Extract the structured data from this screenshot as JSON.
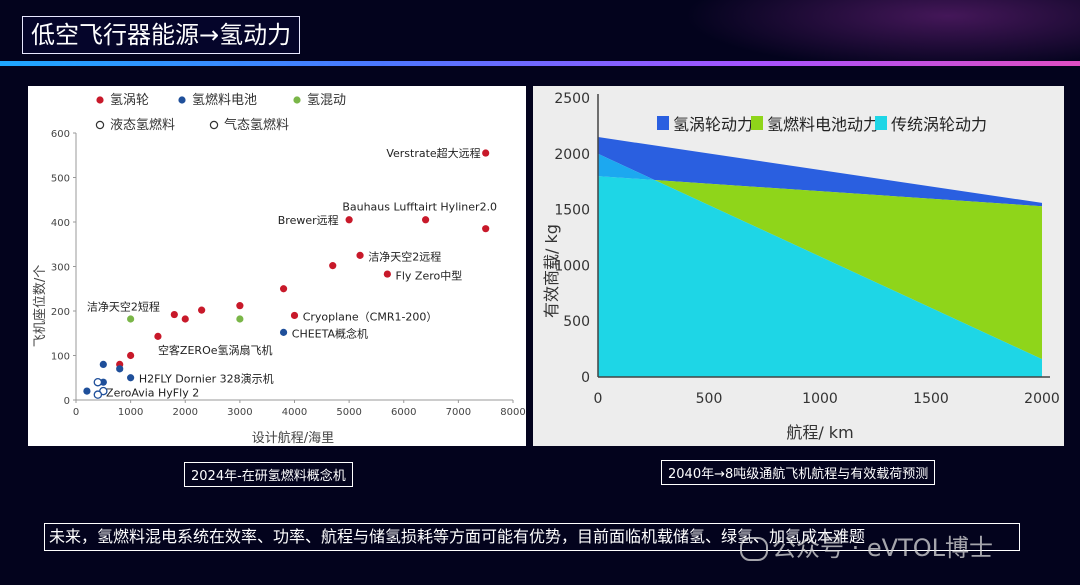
{
  "slide": {
    "title": "低空飞行器能源→氢动力",
    "left_caption": "2024年-在研氢燃料概念机",
    "right_caption": "2040年→8吨级通航飞机航程与有效载荷预测",
    "note": "未来，氢燃料混电系统在效率、功率、航程与储氢损耗等方面可能有优势，目前面临机载储氢、绿氢、加氢成本难题",
    "watermark": "公众号 · eVTOL博士"
  },
  "colors": {
    "turbine_red": "#c8192a",
    "fuelcell_blue": "#1f4f9a",
    "hybrid_green": "#7ab648",
    "area_blue": "#2a5fe0",
    "area_green": "#8fd51a",
    "area_cyan": "#1ed6e6"
  },
  "chart_data": [
    {
      "type": "scatter",
      "xlabel": "设计航程/海里",
      "ylabel": "飞机座位数/个",
      "xlim": [
        0,
        8000
      ],
      "ylim": [
        0,
        600
      ],
      "xticks": [
        0,
        1000,
        2000,
        3000,
        4000,
        5000,
        6000,
        7000,
        8000
      ],
      "yticks": [
        0,
        100,
        200,
        300,
        400,
        500,
        600
      ],
      "legend": [
        {
          "label": "氢涡轮",
          "marker": "filled",
          "color": "#c8192a"
        },
        {
          "label": "氢燃料电池",
          "marker": "filled",
          "color": "#1f4f9a"
        },
        {
          "label": "氢混动",
          "marker": "filled",
          "color": "#7ab648"
        },
        {
          "label": "液态氢燃料",
          "marker": "open",
          "color": "#1f4f9a"
        },
        {
          "label": "气态氢燃料",
          "marker": "open",
          "color": "#1f4f9a"
        }
      ],
      "series": [
        {
          "name": "氢涡轮",
          "marker": "filled",
          "color": "#c8192a",
          "points": [
            [
              7500,
              555
            ],
            [
              7500,
              385
            ],
            [
              6400,
              405
            ],
            [
              5000,
              405
            ],
            [
              5200,
              325
            ],
            [
              4700,
              302
            ],
            [
              5700,
              283
            ],
            [
              3800,
              250
            ],
            [
              3000,
              212
            ],
            [
              4000,
              190
            ],
            [
              1800,
              192
            ],
            [
              2000,
              182
            ],
            [
              2300,
              202
            ],
            [
              1500,
              143
            ],
            [
              1000,
              100
            ],
            [
              800,
              80
            ]
          ]
        },
        {
          "name": "氢燃料电池",
          "marker": "filled",
          "color": "#1f4f9a",
          "points": [
            [
              3800,
              152
            ],
            [
              500,
              80
            ],
            [
              800,
              70
            ],
            [
              1000,
              50
            ],
            [
              500,
              40
            ],
            [
              200,
              20
            ]
          ]
        },
        {
          "name": "氢混动",
          "marker": "filled",
          "color": "#7ab648",
          "points": [
            [
              1000,
              182
            ],
            [
              3000,
              182
            ]
          ]
        },
        {
          "name": "氢燃料电池（气态/液态）",
          "marker": "open",
          "color": "#1f4f9a",
          "points": [
            [
              400,
              40
            ],
            [
              500,
              20
            ],
            [
              400,
              12
            ]
          ]
        }
      ],
      "annotations": [
        {
          "text": "Verstrate超大远程",
          "x": 7500,
          "y": 555,
          "anchor": "end"
        },
        {
          "text": "Bauhaus Lufftairt Hyliner2.0",
          "x": 7800,
          "y": 435,
          "anchor": "end"
        },
        {
          "text": "Brewer远程",
          "x": 4900,
          "y": 405,
          "anchor": "end"
        },
        {
          "text": "洁净天空2远程",
          "x": 5350,
          "y": 322,
          "anchor": "start"
        },
        {
          "text": "Fly Zero中型",
          "x": 5850,
          "y": 280,
          "anchor": "start"
        },
        {
          "text": "洁净天空2短程",
          "x": 200,
          "y": 210,
          "anchor": "start"
        },
        {
          "text": "Cryoplane（CMR1-200）",
          "x": 4150,
          "y": 188,
          "anchor": "start"
        },
        {
          "text": "CHEETA概念机",
          "x": 3950,
          "y": 150,
          "anchor": "start"
        },
        {
          "text": "空客ZEROe氢涡扇飞机",
          "x": 1500,
          "y": 112,
          "anchor": "start"
        },
        {
          "text": "H2FLY Dornier 328演示机",
          "x": 1150,
          "y": 48,
          "anchor": "start"
        },
        {
          "text": "ZeroAvia HyFly 2",
          "x": 550,
          "y": 17,
          "anchor": "start"
        }
      ]
    },
    {
      "type": "area",
      "xlabel": "航程/ km",
      "ylabel": "有效商载/ kg",
      "xlim": [
        0,
        2000
      ],
      "ylim": [
        0,
        2500
      ],
      "xticks": [
        0,
        500,
        1000,
        1500,
        2000
      ],
      "yticks": [
        0,
        500,
        1000,
        1500,
        2000,
        2500
      ],
      "legend": [
        "氢涡轮动力",
        "氢燃料电池动力",
        "传统涡轮动力"
      ],
      "series": [
        {
          "name": "氢涡轮动力",
          "color": "#2a5fe0",
          "x": [
            0,
            2000
          ],
          "y": [
            2150,
            1560
          ]
        },
        {
          "name": "氢燃料电池动力",
          "color": "#8fd51a",
          "x": [
            0,
            2000
          ],
          "y": [
            1800,
            1530
          ]
        },
        {
          "name": "传统涡轮动力",
          "color": "#1ed6e6",
          "x": [
            0,
            2000
          ],
          "y": [
            2000,
            160
          ]
        }
      ]
    }
  ]
}
